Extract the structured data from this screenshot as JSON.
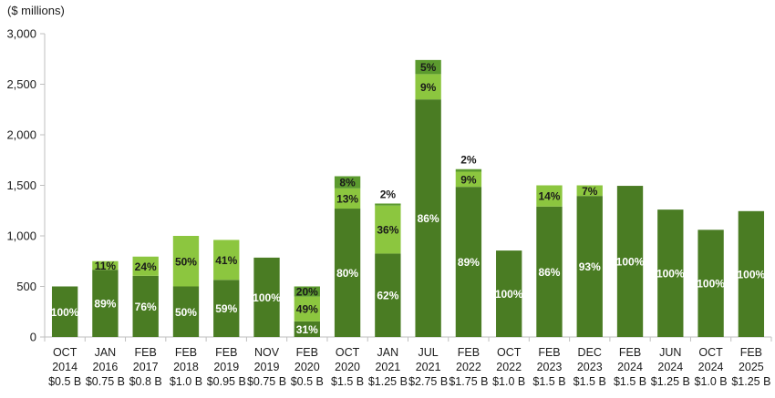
{
  "chart_data": {
    "type": "bar",
    "stacked": true,
    "unit_label": "($ millions)",
    "ylim": [
      0,
      3000
    ],
    "y_ticks": [
      "0",
      "500",
      "1,000",
      "1,500",
      "2,000",
      "2,500",
      "3,000"
    ],
    "y_tick_values": [
      0,
      500,
      1000,
      1500,
      2000,
      2500,
      3000
    ],
    "grid": false,
    "legend": "none",
    "colors": {
      "dark": "#4a7c23",
      "light": "#8cc63f",
      "mid": "#5b9a2e",
      "axis": "#bfbfbf"
    },
    "categories": [
      {
        "month": "OCT",
        "year": "2014",
        "amount": "$0.5 B"
      },
      {
        "month": "JAN",
        "year": "2016",
        "amount": "$0.75 B"
      },
      {
        "month": "FEB",
        "year": "2017",
        "amount": "$0.8 B"
      },
      {
        "month": "FEB",
        "year": "2018",
        "amount": "$1.0 B"
      },
      {
        "month": "FEB",
        "year": "2019",
        "amount": "$0.95 B"
      },
      {
        "month": "NOV",
        "year": "2019",
        "amount": "$0.75 B"
      },
      {
        "month": "FEB",
        "year": "2020",
        "amount": "$0.5 B"
      },
      {
        "month": "OCT",
        "year": "2020",
        "amount": "$1.5 B"
      },
      {
        "month": "JAN",
        "year": "2021",
        "amount": "$1.25 B"
      },
      {
        "month": "JUL",
        "year": "2021",
        "amount": "$2.75 B"
      },
      {
        "month": "FEB",
        "year": "2022",
        "amount": "$1.75 B"
      },
      {
        "month": "OCT",
        "year": "2022",
        "amount": "$1.0 B"
      },
      {
        "month": "FEB",
        "year": "2023",
        "amount": "$1.5 B"
      },
      {
        "month": "DEC",
        "year": "2023",
        "amount": "$1.5 B"
      },
      {
        "month": "FEB",
        "year": "2024",
        "amount": "$1.5 B"
      },
      {
        "month": "JUN",
        "year": "2024",
        "amount": "$1.25 B"
      },
      {
        "month": "OCT",
        "year": "2024",
        "amount": "$1.0 B"
      },
      {
        "month": "FEB",
        "year": "2025",
        "amount": "$1.25 B"
      }
    ],
    "bars": [
      {
        "segments": [
          {
            "value": 500,
            "label": "100%",
            "color": "dark"
          }
        ]
      },
      {
        "segments": [
          {
            "value": 665,
            "label": "89%",
            "color": "dark"
          },
          {
            "value": 85,
            "label": "11%",
            "color": "light"
          }
        ]
      },
      {
        "segments": [
          {
            "value": 605,
            "label": "76%",
            "color": "dark"
          },
          {
            "value": 190,
            "label": "24%",
            "color": "light"
          }
        ]
      },
      {
        "segments": [
          {
            "value": 500,
            "label": "50%",
            "color": "dark"
          },
          {
            "value": 500,
            "label": "50%",
            "color": "light"
          }
        ]
      },
      {
        "segments": [
          {
            "value": 565,
            "label": "59%",
            "color": "dark"
          },
          {
            "value": 395,
            "label": "41%",
            "color": "light"
          }
        ]
      },
      {
        "segments": [
          {
            "value": 785,
            "label": "100%",
            "color": "dark"
          }
        ]
      },
      {
        "segments": [
          {
            "value": 155,
            "label": "31%",
            "color": "dark"
          },
          {
            "value": 245,
            "label": "49%",
            "color": "light"
          },
          {
            "value": 100,
            "label": "20%",
            "color": "mid"
          }
        ]
      },
      {
        "segments": [
          {
            "value": 1270,
            "label": "80%",
            "color": "dark"
          },
          {
            "value": 200,
            "label": "13%",
            "color": "light"
          },
          {
            "value": 120,
            "label": "8%",
            "color": "mid"
          }
        ]
      },
      {
        "segments": [
          {
            "value": 825,
            "label": "62%",
            "color": "dark"
          },
          {
            "value": 475,
            "label": "36%",
            "color": "light"
          },
          {
            "value": 20,
            "label": "2%",
            "color": "mid",
            "outside": true
          }
        ]
      },
      {
        "segments": [
          {
            "value": 2350,
            "label": "86%",
            "color": "dark"
          },
          {
            "value": 250,
            "label": "9%",
            "color": "light"
          },
          {
            "value": 140,
            "label": "5%",
            "color": "mid"
          }
        ]
      },
      {
        "segments": [
          {
            "value": 1485,
            "label": "89%",
            "color": "dark"
          },
          {
            "value": 150,
            "label": "9%",
            "color": "light"
          },
          {
            "value": 25,
            "label": "2%",
            "color": "mid",
            "outside": true
          }
        ]
      },
      {
        "segments": [
          {
            "value": 855,
            "label": "100%",
            "color": "dark"
          }
        ]
      },
      {
        "segments": [
          {
            "value": 1290,
            "label": "86%",
            "color": "dark"
          },
          {
            "value": 210,
            "label": "14%",
            "color": "light"
          }
        ]
      },
      {
        "segments": [
          {
            "value": 1395,
            "label": "93%",
            "color": "dark"
          },
          {
            "value": 105,
            "label": "7%",
            "color": "light"
          }
        ]
      },
      {
        "segments": [
          {
            "value": 1495,
            "label": "100%",
            "color": "dark"
          }
        ]
      },
      {
        "segments": [
          {
            "value": 1260,
            "label": "100%",
            "color": "dark"
          }
        ]
      },
      {
        "segments": [
          {
            "value": 1060,
            "label": "100%",
            "color": "dark"
          }
        ]
      },
      {
        "segments": [
          {
            "value": 1245,
            "label": "100%",
            "color": "dark"
          }
        ]
      }
    ]
  }
}
